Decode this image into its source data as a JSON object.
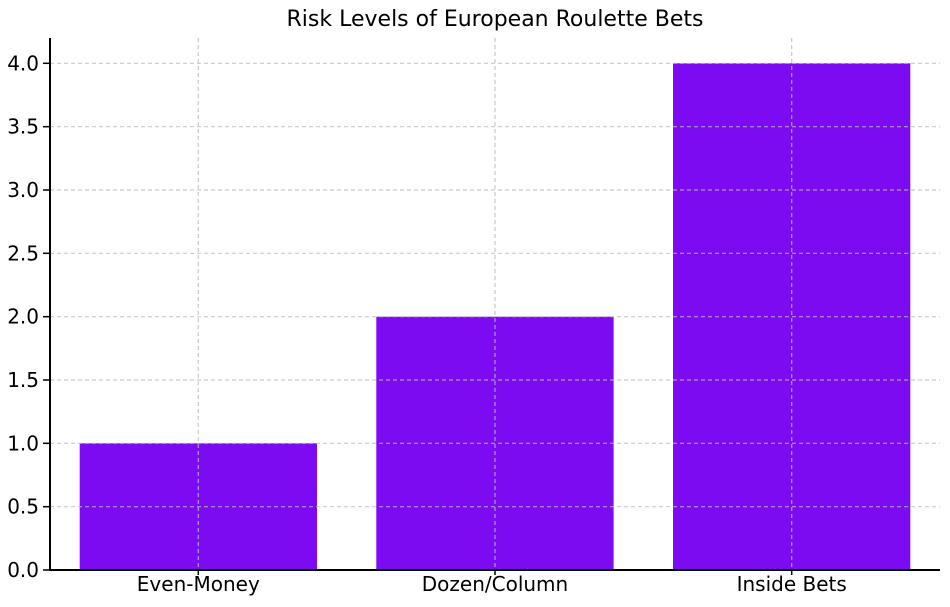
{
  "chart_data": {
    "type": "bar",
    "title": "Risk Levels of European Roulette Bets",
    "categories": [
      "Even-Money",
      "Dozen/Column",
      "Inside Bets"
    ],
    "values": [
      1.0,
      2.0,
      4.0
    ],
    "xlabel": "",
    "ylabel": "",
    "ylim": [
      0,
      4.2
    ],
    "yticks": [
      0.0,
      0.5,
      1.0,
      1.5,
      2.0,
      2.5,
      3.0,
      3.5,
      4.0
    ],
    "grid": true,
    "grid_style": "dashed",
    "grid_axes": "both",
    "legend": null,
    "bar_color": "#7C0BF2",
    "grid_color": "#bbbbbb",
    "axis_color": "#000000",
    "text_color": "#000000",
    "bar_width_fraction": 0.8
  }
}
